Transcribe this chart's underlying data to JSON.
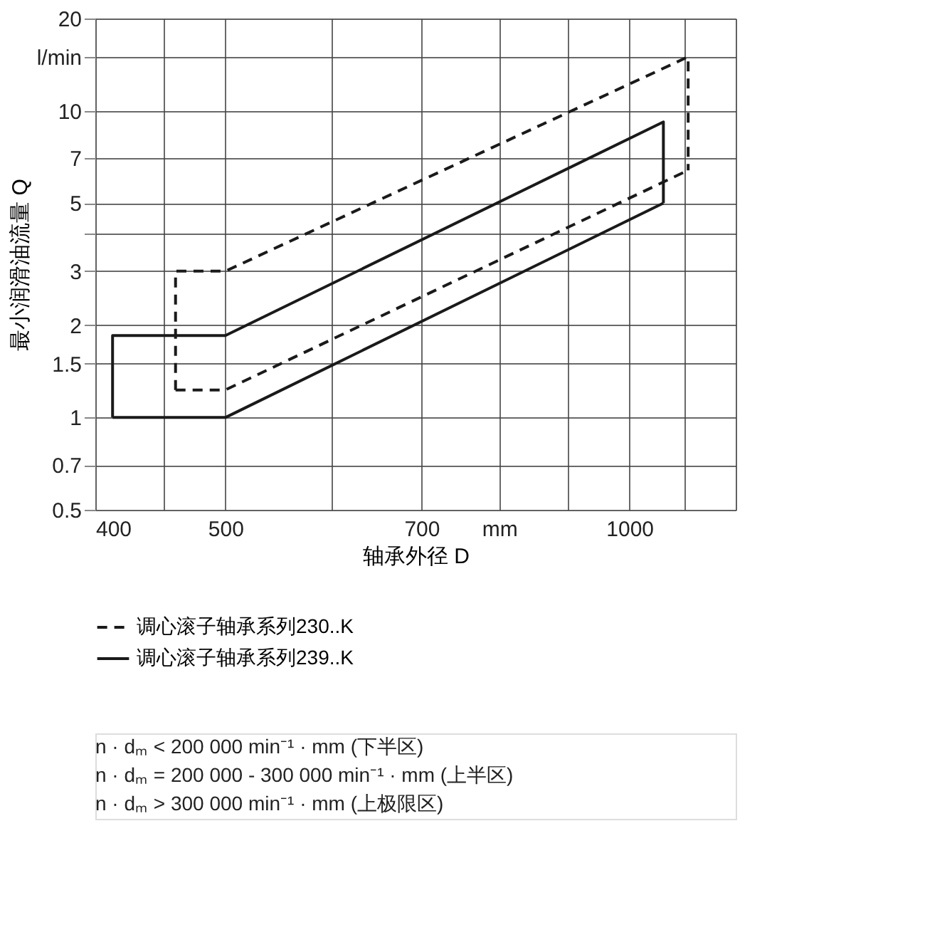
{
  "chart_data": {
    "type": "line",
    "xlabel": "轴承外径 D",
    "ylabel": "最小润滑油流量 Q",
    "series": [
      {
        "name": "调心滚子轴承系列230..K",
        "color": "#1a1a1a",
        "line_style": "dashed",
        "x": [
          459,
          459,
          500,
          1106,
          1106
        ],
        "values": [
          1.23,
          3,
          3,
          15,
          6.4
        ]
      },
      {
        "color": "#1a1a1a",
        "line_style": "dashed",
        "x": [
          459,
          500,
          1106
        ],
        "values": [
          1.23,
          1.23,
          6.4
        ]
      },
      {
        "name": "调心滚子轴承系列239..K",
        "color": "#1a1a1a",
        "line_style": "solid",
        "x": [
          412,
          412,
          500,
          1060,
          1060
        ],
        "values": [
          1,
          1.85,
          1.85,
          9.2,
          5
        ]
      },
      {
        "color": "#1a1a1a",
        "line_style": "solid",
        "x": [
          412,
          500,
          1060
        ],
        "values": [
          1,
          1,
          5
        ]
      }
    ],
    "log": "xy",
    "xlim": [
      400,
      1200
    ],
    "xticks": [
      400,
      {
        "value": 450,
        "label": null
      },
      500,
      {
        "value": 600,
        "label": null
      },
      700,
      {
        "value": 800,
        "label": "mm"
      },
      {
        "value": 900,
        "label": null
      },
      1000,
      {
        "value": 1100,
        "label": null
      },
      {
        "value": 1200,
        "label": null
      }
    ],
    "ylim": [
      0.5,
      20
    ],
    "yticks": [
      0.5,
      0.7,
      1,
      1.5,
      2,
      3,
      {
        "value": 4,
        "label": null
      },
      5,
      7,
      10,
      {
        "value": 15,
        "label": "l/min"
      },
      20
    ],
    "grid": true,
    "legend": "bottom",
    "marker": "none",
    "annotations": [
      "n · dₘ < 200 000 min⁻¹ · mm (下半区)",
      "n · dₘ = 200 000 - 300 000 min⁻¹ · mm (上半区)",
      "n · dₘ > 300 000 min⁻¹ · mm (上极限区)"
    ]
  }
}
